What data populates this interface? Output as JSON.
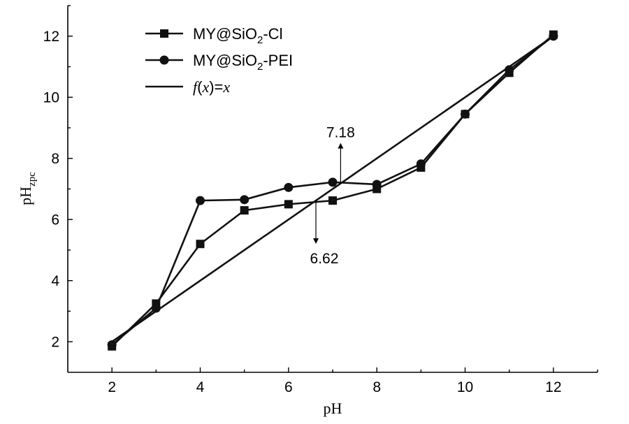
{
  "chart_data": {
    "type": "line",
    "xlabel": "pH",
    "ylabel_main": "pH",
    "ylabel_sub": "zpc",
    "xlim": [
      1,
      13
    ],
    "ylim": [
      1,
      13
    ],
    "xticks": [
      2,
      4,
      6,
      8,
      10,
      12
    ],
    "yticks": [
      2,
      4,
      6,
      8,
      10,
      12
    ],
    "grid": false,
    "legend_position": "top-left",
    "series": [
      {
        "name_main": "MY@SiO",
        "name_sub": "2",
        "name_tail": "-Cl",
        "marker": "square",
        "x": [
          2,
          3,
          4,
          5,
          6,
          7,
          8,
          9,
          10,
          11,
          12
        ],
        "y": [
          1.85,
          3.25,
          5.2,
          6.3,
          6.5,
          6.62,
          7.0,
          7.7,
          9.45,
          10.8,
          12.05
        ]
      },
      {
        "name_main": "MY@SiO",
        "name_sub": "2",
        "name_tail": "-PEI",
        "marker": "circle",
        "x": [
          2,
          3,
          4,
          5,
          6,
          7,
          8,
          9,
          10,
          11,
          12
        ],
        "y": [
          1.9,
          3.1,
          6.62,
          6.65,
          7.05,
          7.22,
          7.15,
          7.82,
          9.45,
          10.9,
          12.0
        ]
      },
      {
        "name_f": "f",
        "name_paren_open": "(",
        "name_x": "x",
        "name_mid": ")=",
        "name_x2": "x",
        "marker": "none",
        "x": [
          2,
          12
        ],
        "y": [
          2,
          12
        ]
      }
    ],
    "annotations": [
      {
        "text": "7.18",
        "x": 7.18,
        "y": 7.18,
        "direction": "up"
      },
      {
        "text": "6.62",
        "x": 6.62,
        "y": 6.62,
        "direction": "down"
      }
    ]
  }
}
